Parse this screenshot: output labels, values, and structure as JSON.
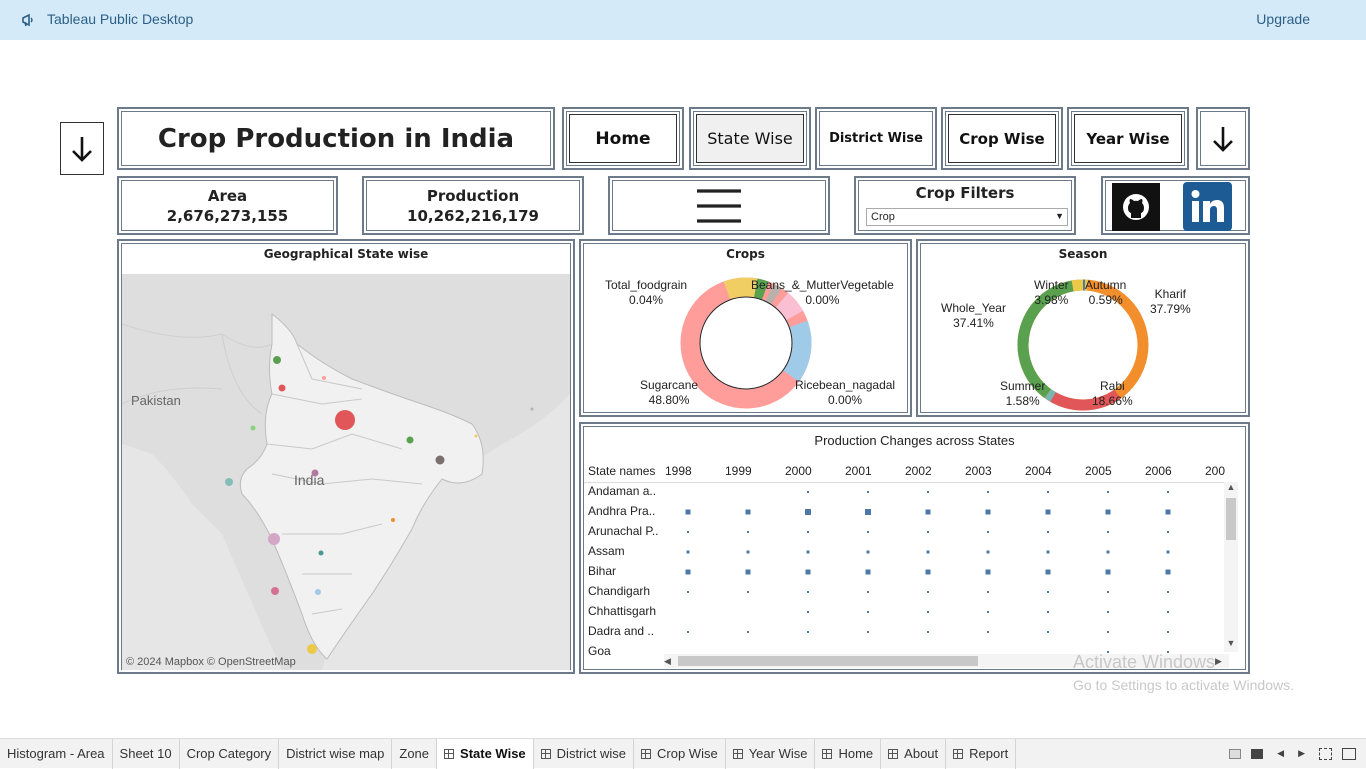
{
  "app": {
    "title": "Tableau Public Desktop",
    "upgrade": "Upgrade"
  },
  "dashboard": {
    "title": "Crop Production in India",
    "nav": {
      "home": "Home",
      "state_wise": "State Wise",
      "district_wise": "District Wise",
      "crop_wise": "Crop Wise",
      "year_wise": "Year Wise"
    },
    "kpis": {
      "area_label": "Area",
      "area_value": "2,676,273,155",
      "production_label": "Production",
      "production_value": "10,262,216,179"
    },
    "filter": {
      "title": "Crop Filters",
      "selected": "Crop"
    },
    "map": {
      "title": "Geographical State wise",
      "label_pakistan": "Pakistan",
      "label_india": "India",
      "attribution": "© 2024 Mapbox © OpenStreetMap"
    },
    "crops": {
      "title": "Crops",
      "labels": [
        {
          "name": "Total_foodgrain",
          "pct": "0.04%"
        },
        {
          "name": "Beans_&_MutterVegetable",
          "pct": "0.00%"
        },
        {
          "name": "Sugarcane",
          "pct": "48.80%"
        },
        {
          "name": "Ricebean_nagadal",
          "pct": "0.00%"
        }
      ]
    },
    "season": {
      "title": "Season",
      "labels": [
        {
          "name": "Winter",
          "pct": "3.98%"
        },
        {
          "name": "Autumn",
          "pct": "0.59%"
        },
        {
          "name": "Kharif",
          "pct": "37.79%"
        },
        {
          "name": "Whole_Year",
          "pct": "37.41%"
        },
        {
          "name": "Summer",
          "pct": "1.58%"
        },
        {
          "name": "Rabi",
          "pct": "18.66%"
        }
      ]
    },
    "production_changes": {
      "title": "Production Changes across States",
      "row_header": "State names",
      "years": [
        "1998",
        "1999",
        "2000",
        "2001",
        "2002",
        "2003",
        "2004",
        "2005",
        "2006",
        "200"
      ],
      "states": [
        "Andaman a..",
        "Andhra Pra..",
        "Arunachal P..",
        "Assam",
        "Bihar",
        "Chandigarh",
        "Chhattisgarh",
        "Dadra and ..",
        "Goa"
      ]
    }
  },
  "watermark": {
    "line1": "Activate Windows",
    "line2": "Go to Settings to activate Windows."
  },
  "tabs": [
    {
      "label": "Histogram - Area",
      "icon": false
    },
    {
      "label": "Sheet 10",
      "icon": false
    },
    {
      "label": "Crop Category",
      "icon": false
    },
    {
      "label": "District wise map",
      "icon": false
    },
    {
      "label": "Zone",
      "icon": false
    },
    {
      "label": "State Wise",
      "icon": true,
      "active": true
    },
    {
      "label": "District wise",
      "icon": true
    },
    {
      "label": "Crop Wise",
      "icon": true
    },
    {
      "label": "Year Wise",
      "icon": true
    },
    {
      "label": "Home",
      "icon": true
    },
    {
      "label": "About",
      "icon": true
    },
    {
      "label": "Report",
      "icon": true
    }
  ],
  "colors": {
    "topbar": "#d4eaf8",
    "link": "#2c5f86",
    "kharif": "#f28e2b",
    "whole_year": "#59a14f",
    "rabi": "#e15759",
    "winter": "#edc948",
    "sugarcane": "#ff9d9a",
    "rice": "#a0cbe8"
  }
}
